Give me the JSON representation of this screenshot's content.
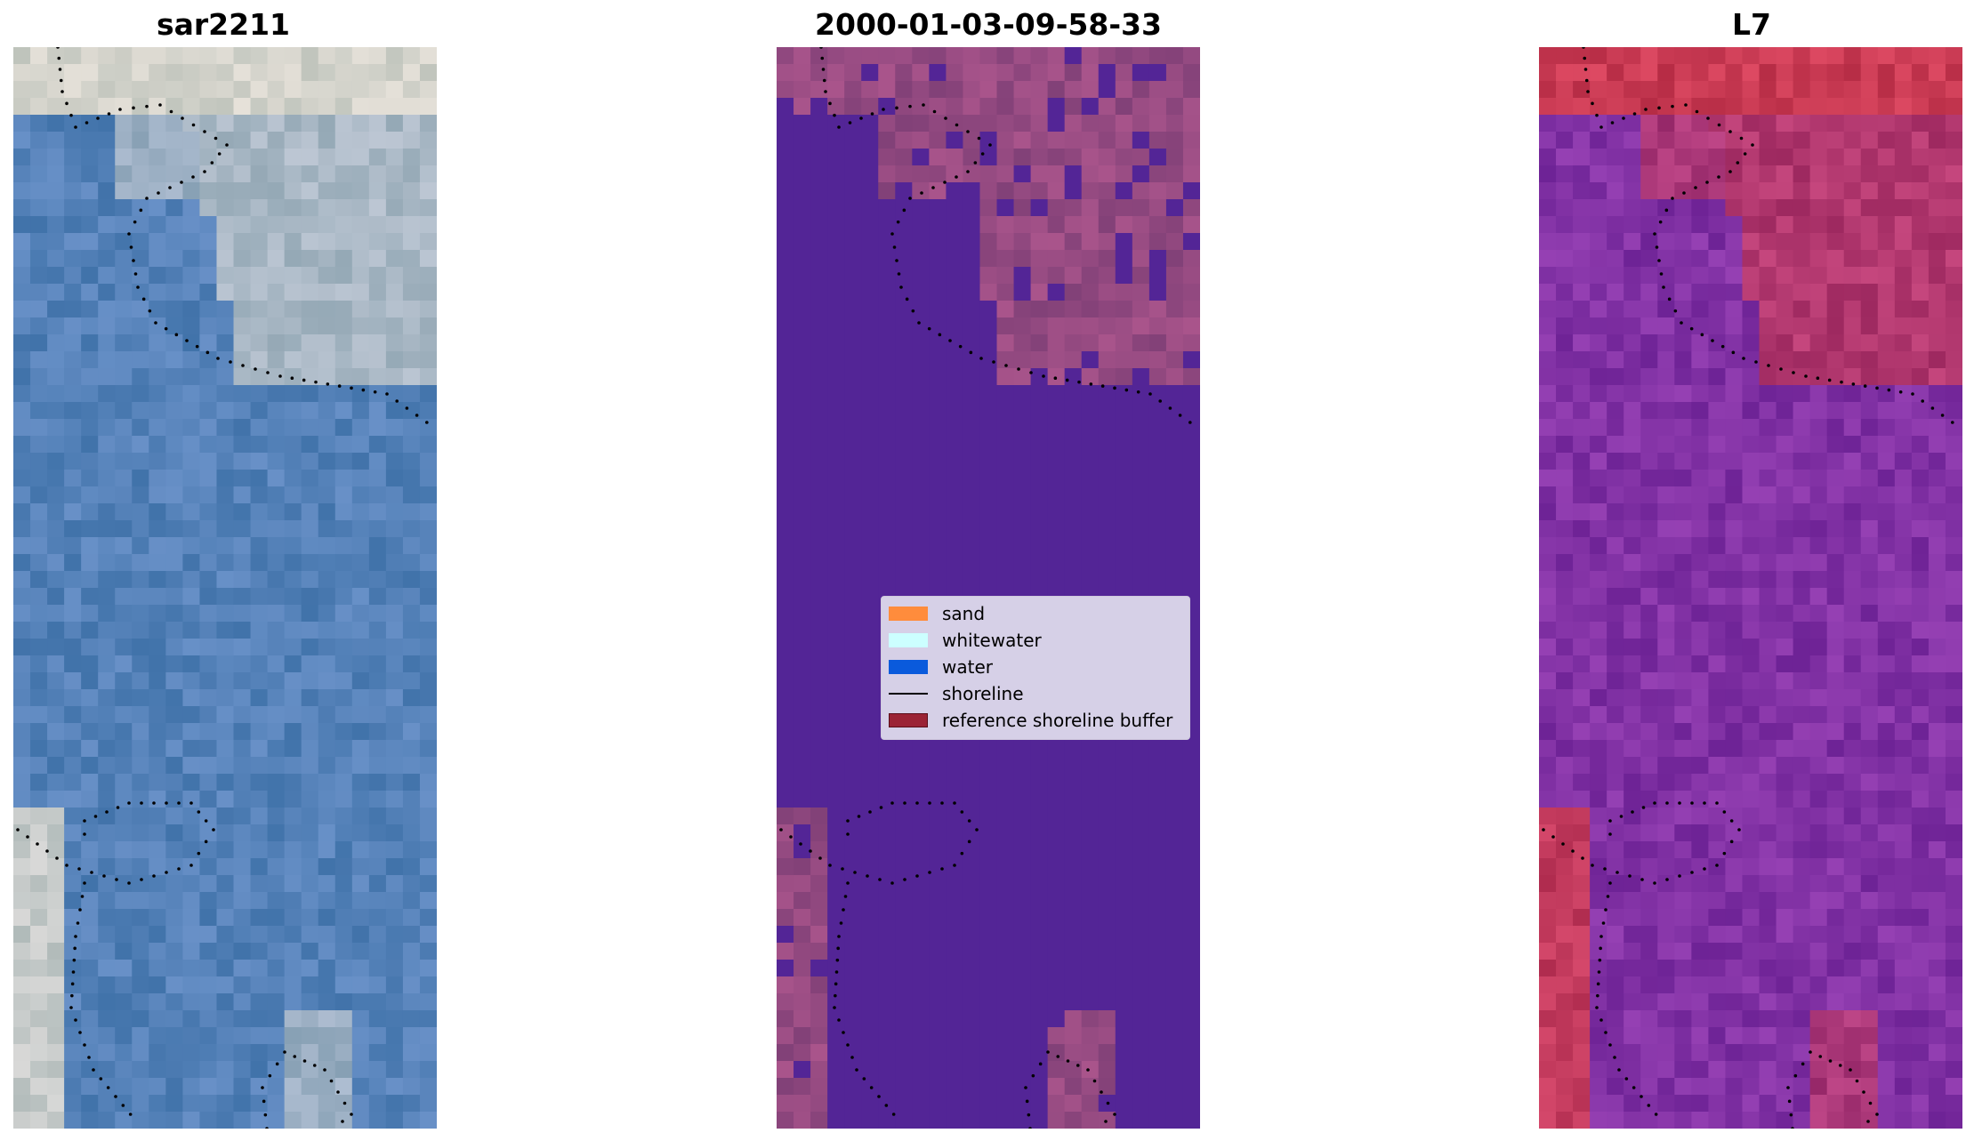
{
  "panels": [
    {
      "title": "sar2211",
      "palette": "rgb"
    },
    {
      "title": "2000-01-03-09-58-33",
      "palette": "class"
    },
    {
      "title": "L7",
      "palette": "mndwi"
    }
  ],
  "legend": {
    "items": [
      {
        "label": "sand",
        "type": "patch",
        "color": "#ff8c3c"
      },
      {
        "label": "whitewater",
        "type": "patch",
        "color": "#ccffff"
      },
      {
        "label": "water",
        "type": "patch",
        "color": "#0a5adc"
      },
      {
        "label": "shoreline",
        "type": "line",
        "color": "#000000"
      },
      {
        "label": "reference shoreline buffer",
        "type": "patch",
        "color": "#9b2335"
      }
    ]
  },
  "colors": {
    "rgb_base": "#5a86be",
    "class_water": "#532596",
    "class_land": "#a55a8c",
    "mndwi_base": "#8c3ca5",
    "mndwi_land": "#c8143c",
    "shoreline": "#000000"
  }
}
